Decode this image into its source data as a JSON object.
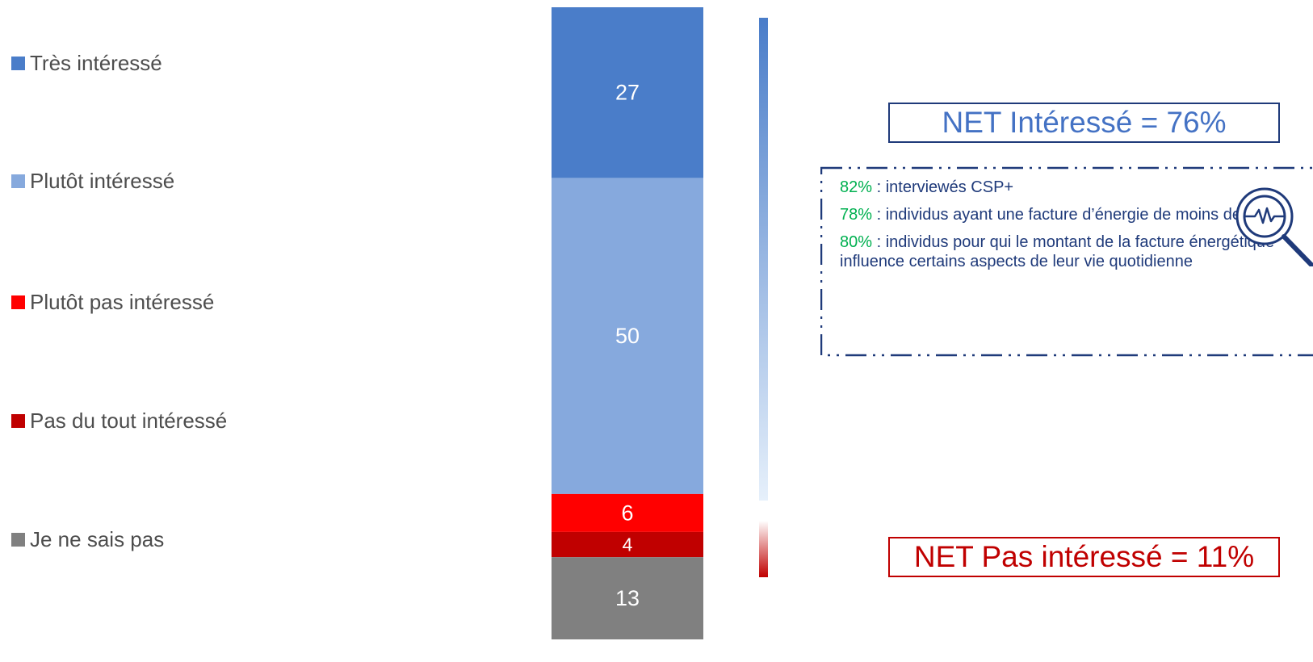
{
  "chart_data": {
    "type": "bar",
    "stacked": true,
    "orientation": "vertical",
    "total": 100,
    "segments": [
      {
        "name": "Très intéressé",
        "value": 27,
        "color": "#4a7dc9"
      },
      {
        "name": "Plutôt intéressé",
        "value": 50,
        "color": "#86a9dd"
      },
      {
        "name": "Plutôt pas intéressé",
        "value": 6,
        "color": "#ff0000"
      },
      {
        "name": "Pas du tout intéressé",
        "value": 4,
        "color": "#c00000"
      },
      {
        "name": "Je ne sais pas",
        "value": 13,
        "color": "#808080"
      }
    ],
    "legend_position": "left",
    "grid": false
  },
  "net": {
    "positive_text": "NET Intéressé = 76%",
    "negative_text": "NET Pas intéressé = 11%"
  },
  "insights": [
    {
      "pct": "82%",
      "text": " : interviewés CSP+"
    },
    {
      "pct": "78%",
      "text": " : individus ayant une facture d’énergie de moins de 100€"
    },
    {
      "pct": "80%",
      "text": " : individus pour qui le montant de la facture énergétique influence certains aspects de leur vie quotidienne"
    }
  ],
  "icons": {
    "insight": "magnifier-heartbeat-icon"
  },
  "colors": {
    "net_positive": "#4472c4",
    "net_negative": "#c00000",
    "frame": "#1f3a7a",
    "insight_pct": "#00b050"
  }
}
